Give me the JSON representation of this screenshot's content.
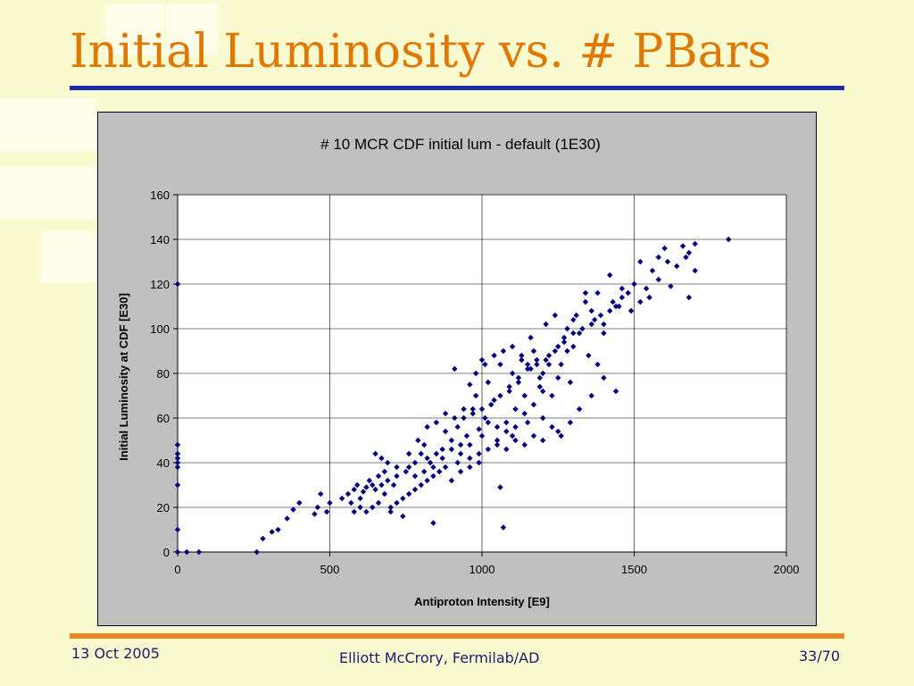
{
  "slide": {
    "title": "Initial Luminosity vs. # PBars",
    "footer_date": "13 Oct 2005",
    "footer_author": "Elliott McCrory, Fermilab/AD",
    "footer_page": "33/70"
  },
  "colors": {
    "title": "#e07800",
    "title_rule": "#1c2aa8",
    "footer_rule": "#e88a1e",
    "marker": "#000080",
    "plot_area": "#ffffff",
    "chart_background": "#c0c0c0"
  },
  "chart_data": {
    "type": "scatter",
    "title": "# 10 MCR CDF initial lum - default (1E30)",
    "xlabel": "Antiproton Intensity [E9]",
    "ylabel": "Initial Luminosity at CDF [E30]",
    "xlim": [
      0,
      2000
    ],
    "ylim": [
      0,
      160
    ],
    "x_ticks": [
      "0",
      "500",
      "1000",
      "1500",
      "2000"
    ],
    "y_ticks": [
      "0",
      "20",
      "40",
      "60",
      "80",
      "100",
      "120",
      "140",
      "160"
    ],
    "grid": true,
    "legend": "none",
    "marker": "diamond",
    "points": [
      [
        0,
        0
      ],
      [
        0,
        10
      ],
      [
        0,
        30
      ],
      [
        0,
        38
      ],
      [
        0,
        40
      ],
      [
        0,
        42
      ],
      [
        0,
        44
      ],
      [
        0,
        48
      ],
      [
        0,
        120
      ],
      [
        30,
        0
      ],
      [
        70,
        0
      ],
      [
        260,
        0
      ],
      [
        280,
        6
      ],
      [
        310,
        9
      ],
      [
        330,
        10
      ],
      [
        360,
        15
      ],
      [
        380,
        19
      ],
      [
        400,
        22
      ],
      [
        450,
        17
      ],
      [
        460,
        20
      ],
      [
        470,
        26
      ],
      [
        490,
        18
      ],
      [
        500,
        22
      ],
      [
        540,
        24
      ],
      [
        560,
        26
      ],
      [
        570,
        22
      ],
      [
        580,
        28
      ],
      [
        590,
        30
      ],
      [
        600,
        24
      ],
      [
        610,
        27
      ],
      [
        620,
        29
      ],
      [
        630,
        32
      ],
      [
        640,
        30
      ],
      [
        650,
        28
      ],
      [
        660,
        34
      ],
      [
        670,
        30
      ],
      [
        680,
        36
      ],
      [
        690,
        32
      ],
      [
        700,
        18
      ],
      [
        710,
        30
      ],
      [
        720,
        34
      ],
      [
        740,
        16
      ],
      [
        760,
        38
      ],
      [
        780,
        40
      ],
      [
        800,
        44
      ],
      [
        810,
        48
      ],
      [
        820,
        42
      ],
      [
        830,
        40
      ],
      [
        840,
        13
      ],
      [
        850,
        44
      ],
      [
        870,
        46
      ],
      [
        880,
        62
      ],
      [
        900,
        50
      ],
      [
        910,
        82
      ],
      [
        920,
        56
      ],
      [
        930,
        48
      ],
      [
        940,
        60
      ],
      [
        950,
        52
      ],
      [
        960,
        75
      ],
      [
        970,
        64
      ],
      [
        980,
        70
      ],
      [
        990,
        55
      ],
      [
        1000,
        86
      ],
      [
        1010,
        60
      ],
      [
        1020,
        76
      ],
      [
        1040,
        68
      ],
      [
        1060,
        84
      ],
      [
        1070,
        11
      ],
      [
        1060,
        29
      ],
      [
        1080,
        58
      ],
      [
        1090,
        72
      ],
      [
        1100,
        80
      ],
      [
        1110,
        64
      ],
      [
        1120,
        76
      ],
      [
        1130,
        88
      ],
      [
        1140,
        70
      ],
      [
        1150,
        84
      ],
      [
        1160,
        96
      ],
      [
        1170,
        90
      ],
      [
        1180,
        86
      ],
      [
        1190,
        74
      ],
      [
        1200,
        80
      ],
      [
        1210,
        102
      ],
      [
        1220,
        88
      ],
      [
        1230,
        70
      ],
      [
        1240,
        106
      ],
      [
        1250,
        54
      ],
      [
        1260,
        84
      ],
      [
        1270,
        96
      ],
      [
        1280,
        90
      ],
      [
        1300,
        104
      ],
      [
        1320,
        98
      ],
      [
        1340,
        112
      ],
      [
        1360,
        108
      ],
      [
        1380,
        116
      ],
      [
        1400,
        102
      ],
      [
        1420,
        124
      ],
      [
        1440,
        110
      ],
      [
        1460,
        118
      ],
      [
        1480,
        116
      ],
      [
        1500,
        120
      ],
      [
        1520,
        130
      ],
      [
        1540,
        118
      ],
      [
        1560,
        126
      ],
      [
        1580,
        132
      ],
      [
        1600,
        136
      ],
      [
        1620,
        119
      ],
      [
        1660,
        137
      ],
      [
        1680,
        114
      ],
      [
        1700,
        126
      ],
      [
        1680,
        134
      ],
      [
        1700,
        138
      ],
      [
        1810,
        140
      ],
      [
        1440,
        72
      ],
      [
        1360,
        70
      ],
      [
        1380,
        84
      ],
      [
        1320,
        64
      ],
      [
        1290,
        76
      ],
      [
        1200,
        60
      ],
      [
        1150,
        58
      ],
      [
        1100,
        52
      ],
      [
        1050,
        50
      ],
      [
        1000,
        52
      ],
      [
        960,
        48
      ],
      [
        920,
        40
      ],
      [
        880,
        38
      ],
      [
        860,
        36
      ],
      [
        840,
        34
      ],
      [
        820,
        32
      ],
      [
        800,
        30
      ],
      [
        780,
        28
      ],
      [
        760,
        26
      ],
      [
        740,
        24
      ],
      [
        720,
        22
      ],
      [
        700,
        20
      ],
      [
        680,
        26
      ],
      [
        660,
        22
      ],
      [
        640,
        20
      ],
      [
        620,
        18
      ],
      [
        600,
        20
      ],
      [
        580,
        18
      ],
      [
        760,
        44
      ],
      [
        790,
        50
      ],
      [
        820,
        56
      ],
      [
        850,
        58
      ],
      [
        880,
        54
      ],
      [
        910,
        60
      ],
      [
        940,
        64
      ],
      [
        970,
        62
      ],
      [
        1000,
        64
      ],
      [
        1030,
        66
      ],
      [
        1060,
        70
      ],
      [
        1090,
        74
      ],
      [
        1120,
        78
      ],
      [
        1150,
        82
      ],
      [
        1180,
        84
      ],
      [
        1210,
        86
      ],
      [
        1240,
        90
      ],
      [
        1270,
        94
      ],
      [
        1300,
        98
      ],
      [
        1330,
        100
      ],
      [
        1360,
        102
      ],
      [
        1390,
        106
      ],
      [
        1420,
        108
      ],
      [
        1450,
        110
      ],
      [
        980,
        80
      ],
      [
        1010,
        84
      ],
      [
        1040,
        88
      ],
      [
        1070,
        90
      ],
      [
        1100,
        92
      ],
      [
        1130,
        86
      ],
      [
        1160,
        82
      ],
      [
        1190,
        78
      ],
      [
        1220,
        84
      ],
      [
        1250,
        92
      ],
      [
        1280,
        100
      ],
      [
        1310,
        106
      ],
      [
        1340,
        116
      ],
      [
        1370,
        104
      ],
      [
        1400,
        98
      ],
      [
        1430,
        112
      ],
      [
        1460,
        114
      ],
      [
        1490,
        108
      ],
      [
        1520,
        112
      ],
      [
        1550,
        114
      ],
      [
        1580,
        122
      ],
      [
        1610,
        130
      ],
      [
        1640,
        128
      ],
      [
        1670,
        132
      ],
      [
        1400,
        78
      ],
      [
        1350,
        88
      ],
      [
        1300,
        92
      ],
      [
        1250,
        78
      ],
      [
        1200,
        72
      ],
      [
        1170,
        66
      ],
      [
        1140,
        62
      ],
      [
        1110,
        56
      ],
      [
        1080,
        54
      ],
      [
        1050,
        56
      ],
      [
        1020,
        58
      ],
      [
        990,
        44
      ],
      [
        960,
        42
      ],
      [
        930,
        44
      ],
      [
        900,
        46
      ],
      [
        870,
        42
      ],
      [
        840,
        38
      ],
      [
        810,
        36
      ],
      [
        780,
        34
      ],
      [
        750,
        36
      ],
      [
        720,
        38
      ],
      [
        690,
        40
      ],
      [
        670,
        42
      ],
      [
        650,
        44
      ],
      [
        900,
        32
      ],
      [
        930,
        36
      ],
      [
        960,
        38
      ],
      [
        990,
        40
      ],
      [
        1020,
        46
      ],
      [
        1050,
        48
      ],
      [
        1080,
        46
      ],
      [
        1110,
        50
      ],
      [
        1140,
        48
      ],
      [
        1170,
        52
      ],
      [
        1200,
        50
      ],
      [
        1230,
        56
      ],
      [
        1260,
        52
      ],
      [
        1290,
        58
      ]
    ]
  }
}
